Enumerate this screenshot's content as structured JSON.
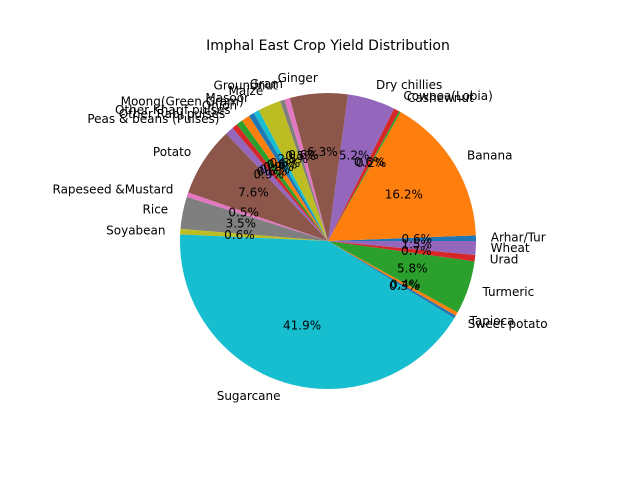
{
  "chart_data": {
    "type": "pie",
    "title": "Imphal East Crop Yield Distribution",
    "start_angle": 0,
    "direction": "counterclockwise",
    "slices": [
      {
        "label": "Arhar/Tur",
        "value": 0.6,
        "pct_label": "0.6%",
        "color": "#1f77b4"
      },
      {
        "label": "Banana",
        "value": 16.2,
        "pct_label": "16.2%",
        "color": "#ff7f0e"
      },
      {
        "label": "Cashewnut",
        "value": 0.2,
        "pct_label": "0.2%",
        "color": "#2ca02c"
      },
      {
        "label": "Cowpea(Lobia)",
        "value": 0.6,
        "pct_label": "0.6%",
        "color": "#d62728"
      },
      {
        "label": "Dry chillies",
        "value": 5.2,
        "pct_label": "5.2%",
        "color": "#9467bd"
      },
      {
        "label": "Ginger",
        "value": 6.3,
        "pct_label": "6.3%",
        "color": "#8c564b"
      },
      {
        "label": "Gram",
        "value": 0.6,
        "pct_label": "0.6%",
        "color": "#e377c2"
      },
      {
        "label": "Groundnut",
        "value": 0.5,
        "pct_label": "0.5%",
        "color": "#7f7f7f"
      },
      {
        "label": "Maize",
        "value": 2.5,
        "pct_label": "2.5%",
        "color": "#bcbd22"
      },
      {
        "label": "Masoor",
        "value": 0.6,
        "pct_label": "0.6%",
        "color": "#17becf"
      },
      {
        "label": "Moong(Green Gram)",
        "value": 0.6,
        "pct_label": "0.6%",
        "color": "#1f77b4"
      },
      {
        "label": "Onion",
        "value": 0.9,
        "pct_label": "0.9%",
        "color": "#ff7f0e"
      },
      {
        "label": "Other Kharif pulses",
        "value": 0.7,
        "pct_label": "0.7%",
        "color": "#2ca02c"
      },
      {
        "label": "Other Rabi pulses",
        "value": 0.6,
        "pct_label": "0.6%",
        "color": "#d62728"
      },
      {
        "label": "Peas & beans (Pulses)",
        "value": 0.9,
        "pct_label": "0.9%",
        "color": "#9467bd"
      },
      {
        "label": "Potato",
        "value": 7.6,
        "pct_label": "7.6%",
        "color": "#8c564b"
      },
      {
        "label": "Rapeseed &Mustard",
        "value": 0.5,
        "pct_label": "0.5%",
        "color": "#e377c2"
      },
      {
        "label": "Rice",
        "value": 3.5,
        "pct_label": "3.5%",
        "color": "#7f7f7f"
      },
      {
        "label": "Soyabean",
        "value": 0.6,
        "pct_label": "0.6%",
        "color": "#bcbd22"
      },
      {
        "label": "Sugarcane",
        "value": 41.9,
        "pct_label": "41.9%",
        "color": "#17becf"
      },
      {
        "label": "Sweet potato",
        "value": 0.3,
        "pct_label": "0.3%",
        "color": "#1f77b4"
      },
      {
        "label": "Tapioca",
        "value": 0.4,
        "pct_label": "0.4%",
        "color": "#ff7f0e"
      },
      {
        "label": "Turmeric",
        "value": 5.8,
        "pct_label": "5.8%",
        "color": "#2ca02c"
      },
      {
        "label": "Urad",
        "value": 0.7,
        "pct_label": "0.7%",
        "color": "#d62728"
      },
      {
        "label": "Wheat",
        "value": 1.5,
        "pct_label": "1.5%",
        "color": "#9467bd"
      }
    ]
  }
}
